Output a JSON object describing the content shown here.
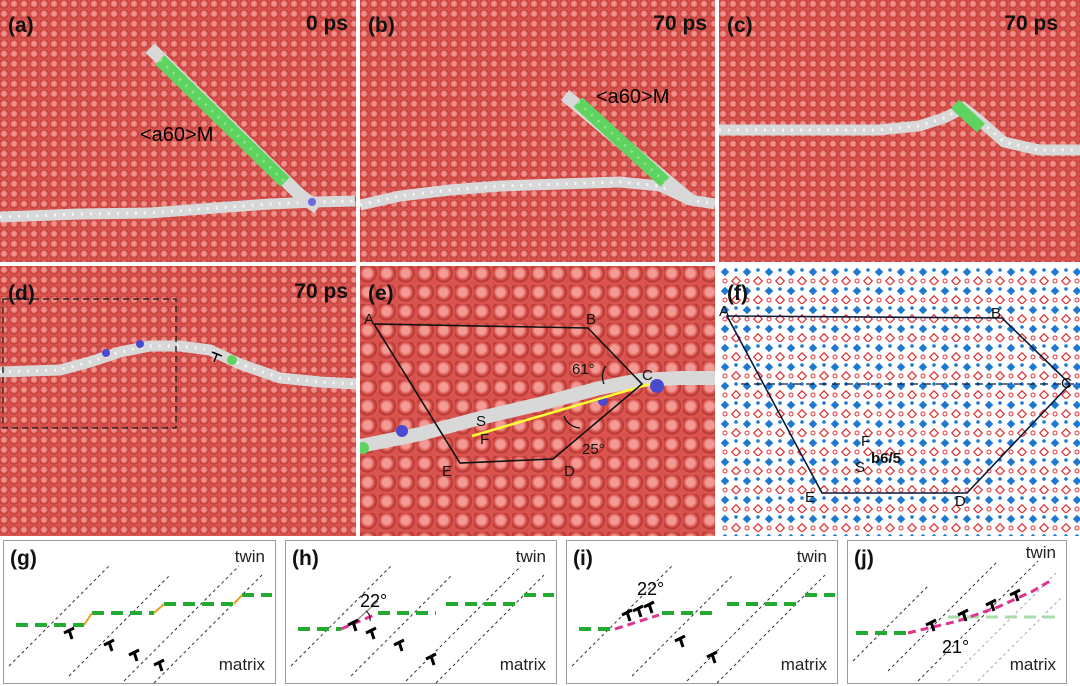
{
  "panels": [
    {
      "label": "(a)",
      "time": "0 ps",
      "annotation": "<a60>M"
    },
    {
      "label": "(b)",
      "time": "70 ps",
      "annotation": "<a60>M"
    },
    {
      "label": "(c)",
      "time": "70 ps"
    },
    {
      "label": "(d)",
      "time": "70 ps"
    },
    {
      "label": "(e)",
      "points": [
        "A",
        "B",
        "C",
        "D",
        "E",
        "F",
        "S"
      ],
      "angles": [
        "61°",
        "25°"
      ]
    },
    {
      "label": "(f)",
      "points": [
        "A",
        "B",
        "C",
        "D",
        "E",
        "F",
        "S"
      ],
      "burgers": "b6/5"
    }
  ],
  "schematics": [
    {
      "label": "(g)",
      "top": "twin",
      "bottom": "matrix"
    },
    {
      "label": "(h)",
      "top": "twin",
      "bottom": "matrix",
      "angle": "22°"
    },
    {
      "label": "(i)",
      "top": "twin",
      "bottom": "matrix",
      "angle": "22°"
    },
    {
      "label": "(j)",
      "top": "twin",
      "bottom": "matrix",
      "angle": "21°"
    }
  ],
  "colors": {
    "atoms": "#d9534f",
    "boundary": "#d8d8d8",
    "dislocation": "#5fd35f",
    "yellow_line": "#ffff33",
    "green_dash": "#22aa33",
    "magenta_dash": "#e0338f"
  }
}
